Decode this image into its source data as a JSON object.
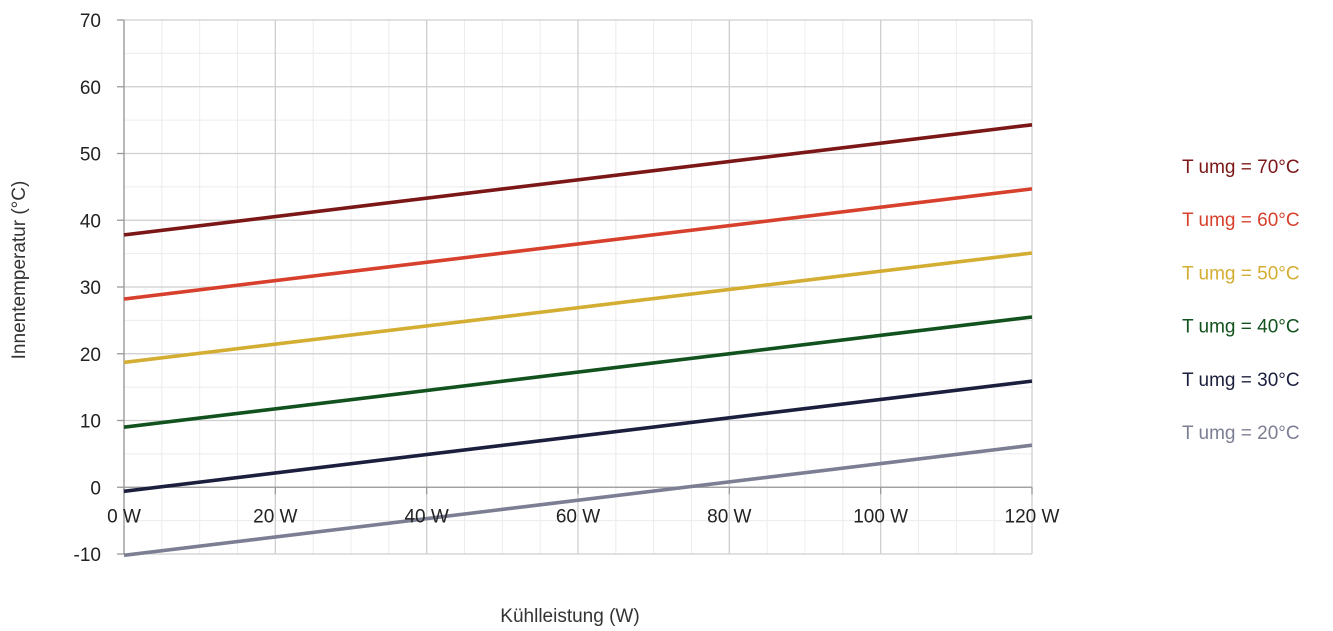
{
  "chart_data": {
    "type": "line",
    "title": "",
    "xlabel": "Kühlleistung (W)",
    "ylabel": "Innentemperatur (°C)",
    "xlim": [
      0,
      120
    ],
    "ylim": [
      -10,
      70
    ],
    "x_ticks": [
      0,
      20,
      40,
      60,
      80,
      100,
      120
    ],
    "x_tick_labels": [
      "0 W",
      "20 W",
      "40 W",
      "60 W",
      "80 W",
      "100 W",
      "120 W"
    ],
    "y_ticks": [
      -10,
      0,
      10,
      20,
      30,
      40,
      50,
      60,
      70
    ],
    "y_tick_labels": [
      "-10",
      "0",
      "10",
      "20",
      "30",
      "40",
      "50",
      "60",
      "70"
    ],
    "x_minor_step": 5,
    "y_minor_step": 5,
    "grid": true,
    "legend_position": "right",
    "series": [
      {
        "name": "T umg = 70°C",
        "color": "#7b1717",
        "x": [
          0,
          120
        ],
        "y": [
          37.8,
          54.3
        ]
      },
      {
        "name": "T umg = 60°C",
        "color": "#d8402e",
        "x": [
          0,
          120
        ],
        "y": [
          28.2,
          44.7
        ]
      },
      {
        "name": "T umg = 50°C",
        "color": "#d4ad33",
        "x": [
          0,
          120
        ],
        "y": [
          18.7,
          35.1
        ]
      },
      {
        "name": "T umg = 40°C",
        "color": "#12521e",
        "x": [
          0,
          120
        ],
        "y": [
          9.0,
          25.5
        ]
      },
      {
        "name": "T umg = 30°C",
        "color": "#1b1f3d",
        "x": [
          0,
          120
        ],
        "y": [
          -0.6,
          15.9
        ]
      },
      {
        "name": "T umg = 20°C",
        "color": "#7c7f93",
        "x": [
          0,
          120
        ],
        "y": [
          -10.2,
          6.3
        ]
      }
    ]
  }
}
